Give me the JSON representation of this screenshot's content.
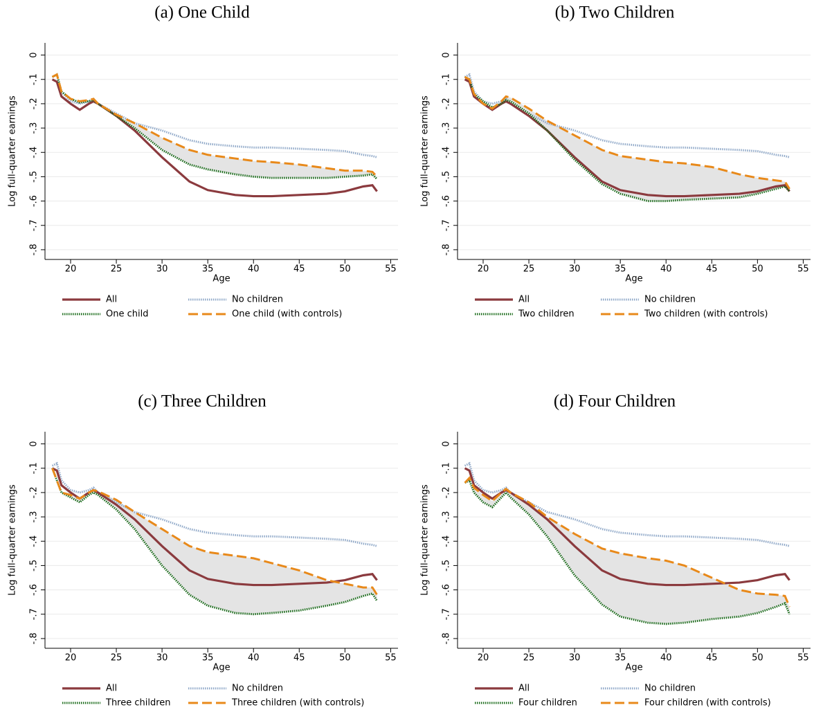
{
  "chart_data": [
    {
      "type": "line",
      "title": "(a) One Child",
      "x_label": "Age",
      "y_label": "Log full-quarter earnings",
      "grid": true,
      "shaded": true,
      "xlim": [
        17.2,
        55.8
      ],
      "xticks": [
        20,
        25,
        30,
        35,
        40,
        45,
        50,
        55
      ],
      "ylim": [
        -0.84,
        0.05
      ],
      "yticks": [
        0,
        {
          "value": -0.1,
          "label": "-.1"
        },
        {
          "value": -0.2,
          "label": "-.2"
        },
        {
          "value": -0.3,
          "label": "-.3"
        },
        {
          "value": -0.4,
          "label": "-.4"
        },
        {
          "value": -0.5,
          "label": "-.5"
        },
        {
          "value": -0.6,
          "label": "-.6"
        },
        {
          "value": -0.7,
          "label": "-.7"
        },
        {
          "value": -0.8,
          "label": "-.8"
        }
      ],
      "x": [
        18,
        18.5,
        19,
        20,
        21,
        22,
        22.5,
        23,
        25,
        27,
        30,
        33,
        35,
        38,
        40,
        42,
        45,
        48,
        50,
        52,
        53,
        53.5
      ],
      "series": [
        {
          "name": "All",
          "color": "#8b3a3e",
          "style": "solid",
          "values": [
            -0.1,
            -0.11,
            -0.17,
            -0.2,
            -0.225,
            -0.2,
            -0.19,
            -0.2,
            -0.25,
            -0.31,
            -0.42,
            -0.52,
            -0.555,
            -0.575,
            -0.58,
            -0.58,
            -0.575,
            -0.57,
            -0.56,
            -0.54,
            -0.535,
            -0.56
          ]
        },
        {
          "name": "No children",
          "color": "#8fa8c8",
          "style": "dotted",
          "values": [
            -0.09,
            -0.08,
            -0.15,
            -0.19,
            -0.2,
            -0.19,
            -0.18,
            -0.2,
            -0.24,
            -0.28,
            -0.31,
            -0.35,
            -0.365,
            -0.375,
            -0.38,
            -0.38,
            -0.385,
            -0.39,
            -0.395,
            -0.41,
            -0.415,
            -0.42
          ]
        },
        {
          "name": "One child",
          "color": "#1a6b1a",
          "style": "dotted",
          "values": [
            -0.09,
            -0.08,
            -0.15,
            -0.18,
            -0.195,
            -0.19,
            -0.185,
            -0.2,
            -0.25,
            -0.3,
            -0.39,
            -0.45,
            -0.47,
            -0.49,
            -0.5,
            -0.505,
            -0.505,
            -0.505,
            -0.5,
            -0.495,
            -0.49,
            -0.51
          ]
        },
        {
          "name": "One child (with controls)",
          "color": "#e8891a",
          "style": "dashed",
          "values": [
            -0.09,
            -0.08,
            -0.15,
            -0.18,
            -0.19,
            -0.185,
            -0.18,
            -0.2,
            -0.245,
            -0.28,
            -0.34,
            -0.39,
            -0.41,
            -0.425,
            -0.435,
            -0.44,
            -0.45,
            -0.465,
            -0.475,
            -0.475,
            -0.48,
            -0.5
          ]
        }
      ]
    },
    {
      "type": "line",
      "title": "(b) Two Children",
      "x_label": "Age",
      "y_label": "Log full-quarter earnings",
      "grid": true,
      "shaded": true,
      "xlim": [
        17.2,
        55.8
      ],
      "xticks": [
        20,
        25,
        30,
        35,
        40,
        45,
        50,
        55
      ],
      "ylim": [
        -0.84,
        0.05
      ],
      "yticks": [
        0,
        {
          "value": -0.1,
          "label": "-.1"
        },
        {
          "value": -0.2,
          "label": "-.2"
        },
        {
          "value": -0.3,
          "label": "-.3"
        },
        {
          "value": -0.4,
          "label": "-.4"
        },
        {
          "value": -0.5,
          "label": "-.5"
        },
        {
          "value": -0.6,
          "label": "-.6"
        },
        {
          "value": -0.7,
          "label": "-.7"
        },
        {
          "value": -0.8,
          "label": "-.8"
        }
      ],
      "x": [
        18,
        18.5,
        19,
        20,
        21,
        22,
        22.5,
        23,
        25,
        27,
        30,
        33,
        35,
        38,
        40,
        42,
        45,
        48,
        50,
        52,
        53,
        53.5
      ],
      "series": [
        {
          "name": "All",
          "color": "#8b3a3e",
          "style": "solid",
          "values": [
            -0.1,
            -0.11,
            -0.17,
            -0.2,
            -0.225,
            -0.2,
            -0.19,
            -0.2,
            -0.25,
            -0.31,
            -0.42,
            -0.52,
            -0.555,
            -0.575,
            -0.58,
            -0.58,
            -0.575,
            -0.57,
            -0.56,
            -0.54,
            -0.535,
            -0.56
          ]
        },
        {
          "name": "No children",
          "color": "#8fa8c8",
          "style": "dotted",
          "values": [
            -0.09,
            -0.08,
            -0.15,
            -0.19,
            -0.2,
            -0.19,
            -0.18,
            -0.2,
            -0.24,
            -0.28,
            -0.31,
            -0.35,
            -0.365,
            -0.375,
            -0.38,
            -0.38,
            -0.385,
            -0.39,
            -0.395,
            -0.41,
            -0.415,
            -0.42
          ]
        },
        {
          "name": "Two children",
          "color": "#1a6b1a",
          "style": "dotted",
          "values": [
            -0.09,
            -0.1,
            -0.16,
            -0.19,
            -0.215,
            -0.2,
            -0.185,
            -0.19,
            -0.24,
            -0.31,
            -0.43,
            -0.53,
            -0.57,
            -0.6,
            -0.6,
            -0.595,
            -0.59,
            -0.585,
            -0.57,
            -0.55,
            -0.54,
            -0.56
          ]
        },
        {
          "name": "Two children (with controls)",
          "color": "#e8891a",
          "style": "dashed",
          "values": [
            -0.09,
            -0.1,
            -0.16,
            -0.2,
            -0.22,
            -0.19,
            -0.17,
            -0.175,
            -0.22,
            -0.27,
            -0.33,
            -0.39,
            -0.415,
            -0.43,
            -0.44,
            -0.445,
            -0.46,
            -0.49,
            -0.505,
            -0.515,
            -0.52,
            -0.55
          ]
        }
      ]
    },
    {
      "type": "line",
      "title": "(c) Three Children",
      "x_label": "Age",
      "y_label": "Log full-quarter earnings",
      "grid": true,
      "shaded": true,
      "xlim": [
        17.2,
        55.8
      ],
      "xticks": [
        20,
        25,
        30,
        35,
        40,
        45,
        50,
        55
      ],
      "ylim": [
        -0.84,
        0.05
      ],
      "yticks": [
        0,
        {
          "value": -0.1,
          "label": "-.1"
        },
        {
          "value": -0.2,
          "label": "-.2"
        },
        {
          "value": -0.3,
          "label": "-.3"
        },
        {
          "value": -0.4,
          "label": "-.4"
        },
        {
          "value": -0.5,
          "label": "-.5"
        },
        {
          "value": -0.6,
          "label": "-.6"
        },
        {
          "value": -0.7,
          "label": "-.7"
        },
        {
          "value": -0.8,
          "label": "-.8"
        }
      ],
      "x": [
        18,
        18.5,
        19,
        20,
        21,
        22,
        22.5,
        23,
        25,
        27,
        30,
        33,
        35,
        38,
        40,
        42,
        45,
        48,
        50,
        52,
        53,
        53.5
      ],
      "series": [
        {
          "name": "All",
          "color": "#8b3a3e",
          "style": "solid",
          "values": [
            -0.1,
            -0.11,
            -0.17,
            -0.2,
            -0.225,
            -0.2,
            -0.19,
            -0.2,
            -0.25,
            -0.31,
            -0.42,
            -0.52,
            -0.555,
            -0.575,
            -0.58,
            -0.58,
            -0.575,
            -0.57,
            -0.56,
            -0.54,
            -0.535,
            -0.56
          ]
        },
        {
          "name": "No children",
          "color": "#8fa8c8",
          "style": "dotted",
          "values": [
            -0.09,
            -0.08,
            -0.15,
            -0.19,
            -0.2,
            -0.19,
            -0.18,
            -0.2,
            -0.24,
            -0.28,
            -0.31,
            -0.35,
            -0.365,
            -0.375,
            -0.38,
            -0.38,
            -0.385,
            -0.39,
            -0.395,
            -0.41,
            -0.415,
            -0.42
          ]
        },
        {
          "name": "Three children",
          "color": "#1a6b1a",
          "style": "dotted",
          "values": [
            -0.1,
            -0.15,
            -0.2,
            -0.22,
            -0.24,
            -0.21,
            -0.2,
            -0.21,
            -0.27,
            -0.35,
            -0.5,
            -0.62,
            -0.665,
            -0.695,
            -0.7,
            -0.695,
            -0.685,
            -0.665,
            -0.65,
            -0.625,
            -0.615,
            -0.645
          ]
        },
        {
          "name": "Three children (with controls)",
          "color": "#e8891a",
          "style": "dashed",
          "values": [
            -0.1,
            -0.15,
            -0.2,
            -0.21,
            -0.225,
            -0.2,
            -0.19,
            -0.195,
            -0.23,
            -0.28,
            -0.35,
            -0.42,
            -0.445,
            -0.46,
            -0.47,
            -0.49,
            -0.52,
            -0.56,
            -0.575,
            -0.59,
            -0.59,
            -0.62
          ]
        }
      ]
    },
    {
      "type": "line",
      "title": "(d) Four Children",
      "x_label": "Age",
      "y_label": "Log full-quarter earnings",
      "grid": true,
      "shaded": true,
      "xlim": [
        17.2,
        55.8
      ],
      "xticks": [
        20,
        25,
        30,
        35,
        40,
        45,
        50,
        55
      ],
      "ylim": [
        -0.84,
        0.05
      ],
      "yticks": [
        0,
        {
          "value": -0.1,
          "label": "-.1"
        },
        {
          "value": -0.2,
          "label": "-.2"
        },
        {
          "value": -0.3,
          "label": "-.3"
        },
        {
          "value": -0.4,
          "label": "-.4"
        },
        {
          "value": -0.5,
          "label": "-.5"
        },
        {
          "value": -0.6,
          "label": "-.6"
        },
        {
          "value": -0.7,
          "label": "-.7"
        },
        {
          "value": -0.8,
          "label": "-.8"
        }
      ],
      "x": [
        18,
        18.5,
        19,
        20,
        21,
        22,
        22.5,
        23,
        25,
        27,
        30,
        33,
        35,
        38,
        40,
        42,
        45,
        48,
        50,
        52,
        53,
        53.5
      ],
      "series": [
        {
          "name": "All",
          "color": "#8b3a3e",
          "style": "solid",
          "values": [
            -0.1,
            -0.11,
            -0.17,
            -0.2,
            -0.225,
            -0.2,
            -0.19,
            -0.2,
            -0.25,
            -0.31,
            -0.42,
            -0.52,
            -0.555,
            -0.575,
            -0.58,
            -0.58,
            -0.575,
            -0.57,
            -0.56,
            -0.54,
            -0.535,
            -0.56
          ]
        },
        {
          "name": "No children",
          "color": "#8fa8c8",
          "style": "dotted",
          "values": [
            -0.09,
            -0.08,
            -0.15,
            -0.19,
            -0.2,
            -0.19,
            -0.18,
            -0.2,
            -0.24,
            -0.28,
            -0.31,
            -0.35,
            -0.365,
            -0.375,
            -0.38,
            -0.38,
            -0.385,
            -0.39,
            -0.395,
            -0.41,
            -0.415,
            -0.42
          ]
        },
        {
          "name": "Four children",
          "color": "#1a6b1a",
          "style": "dotted",
          "values": [
            -0.16,
            -0.15,
            -0.2,
            -0.24,
            -0.26,
            -0.22,
            -0.2,
            -0.22,
            -0.29,
            -0.38,
            -0.54,
            -0.66,
            -0.71,
            -0.735,
            -0.74,
            -0.735,
            -0.72,
            -0.71,
            -0.695,
            -0.67,
            -0.655,
            -0.7
          ]
        },
        {
          "name": "Four children (with controls)",
          "color": "#e8891a",
          "style": "dashed",
          "values": [
            -0.16,
            -0.14,
            -0.18,
            -0.21,
            -0.235,
            -0.2,
            -0.185,
            -0.2,
            -0.24,
            -0.3,
            -0.37,
            -0.43,
            -0.45,
            -0.47,
            -0.48,
            -0.5,
            -0.55,
            -0.6,
            -0.615,
            -0.62,
            -0.625,
            -0.67
          ]
        }
      ]
    }
  ]
}
